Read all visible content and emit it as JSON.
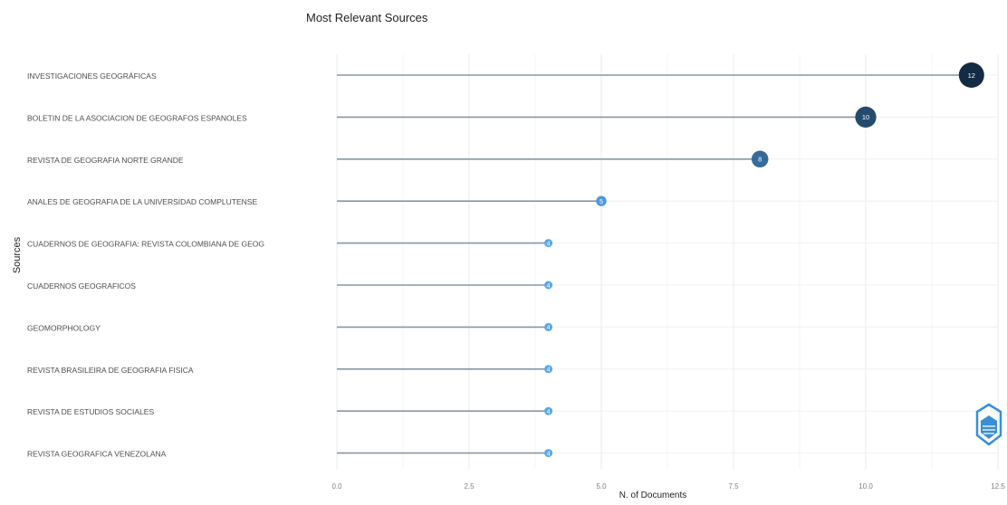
{
  "chart_data": {
    "type": "lollipop",
    "title": "Most Relevant Sources",
    "xlabel": "N. of Documents",
    "ylabel": "Sources",
    "xlim": [
      0,
      12.5
    ],
    "x_ticks": [
      "0.0",
      "2.5",
      "5.0",
      "7.5",
      "10.0",
      "12.5"
    ],
    "x_tick_values": [
      0,
      2.5,
      5,
      7.5,
      10,
      12.5
    ],
    "grid": true,
    "categories": [
      "INVESTIGACIONES GEOGRÁFICAS",
      "BOLETIN DE LA ASOCIACION DE GEOGRAFOS ESPANOLES",
      "REVISTA DE GEOGRAFIA NORTE GRANDE",
      "ANALES DE GEOGRAFIA DE LA UNIVERSIDAD COMPLUTENSE",
      "CUADERNOS DE GEOGRAFIA: REVISTA COLOMBIANA DE GEOG",
      "CUADERNOS GEOGRAFICOS",
      "GEOMORPHOLOGY",
      "REVISTA BRASILEIRA DE GEOGRAFIA FISICA",
      "REVISTA DE ESTUDIOS SOCIALES",
      "REVISTA GEOGRAFICA VENEZOLANA"
    ],
    "values": [
      12,
      10,
      8,
      5,
      4,
      4,
      4,
      4,
      4,
      4
    ],
    "value_labels": [
      "12",
      "10",
      "8",
      "5",
      "4",
      "4",
      "4",
      "4",
      "4",
      "4"
    ],
    "color_scale": {
      "low": "#56a8f0",
      "high": "#132b43"
    }
  },
  "watermark": {
    "name": "bibliometrix-logo-icon"
  }
}
